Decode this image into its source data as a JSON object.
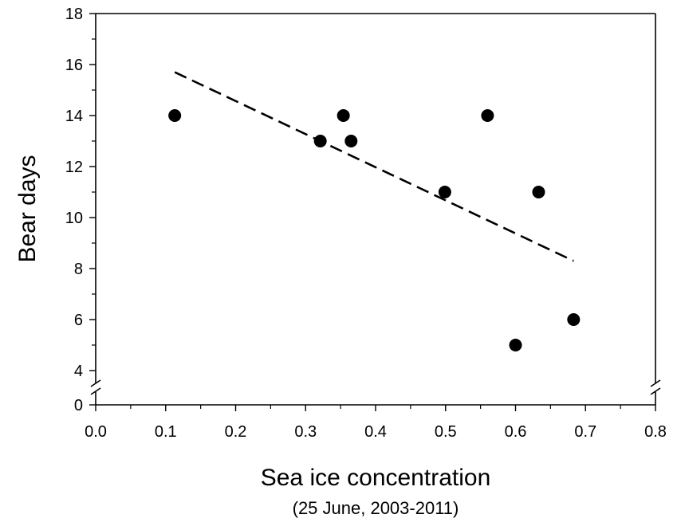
{
  "chart_data": {
    "type": "scatter",
    "title": "",
    "xlabel": "Sea ice concentration",
    "xlabel_sub": "(25 June, 2003-2011)",
    "ylabel": "Bear days",
    "xlim": [
      0,
      0.8
    ],
    "ylim_upper": [
      4,
      18
    ],
    "y_break": true,
    "y_lower_tick": 0,
    "x_ticks": [
      "0.0",
      "0.1",
      "0.2",
      "0.3",
      "0.4",
      "0.5",
      "0.6",
      "0.7",
      "0.8"
    ],
    "y_ticks": [
      "0",
      "4",
      "6",
      "8",
      "10",
      "12",
      "14",
      "16",
      "18"
    ],
    "grid": false,
    "points": [
      {
        "x": 0.113,
        "y": 14
      },
      {
        "x": 0.321,
        "y": 13
      },
      {
        "x": 0.354,
        "y": 14
      },
      {
        "x": 0.365,
        "y": 13
      },
      {
        "x": 0.499,
        "y": 11
      },
      {
        "x": 0.56,
        "y": 14
      },
      {
        "x": 0.6,
        "y": 5
      },
      {
        "x": 0.633,
        "y": 11
      },
      {
        "x": 0.683,
        "y": 6
      }
    ],
    "trendline": {
      "style": "dashed",
      "x": [
        0.113,
        0.683
      ],
      "y": [
        15.7,
        8.3
      ]
    },
    "point_color": "#000000"
  }
}
